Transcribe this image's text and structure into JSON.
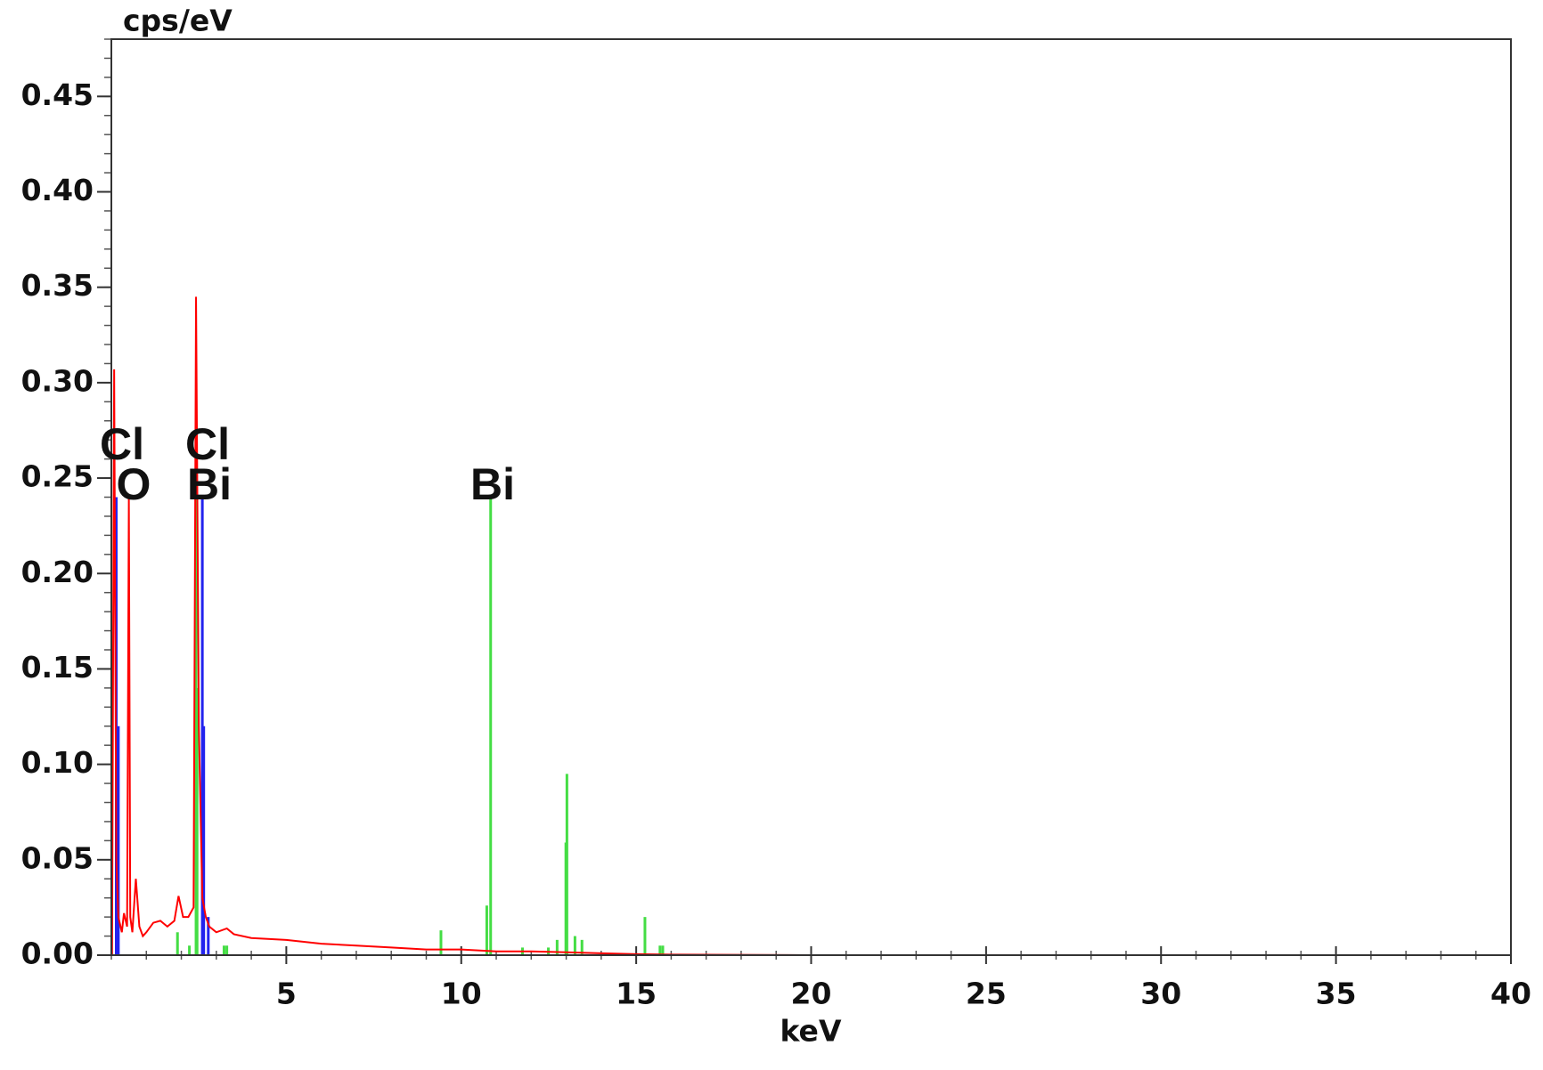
{
  "chart_data": {
    "type": "line",
    "ylabel": "cps/eV",
    "xlabel": "keV",
    "xlim": [
      0,
      40
    ],
    "xticks": [
      5,
      10,
      15,
      20,
      25,
      30,
      35,
      40
    ],
    "ylim": [
      0,
      0.48
    ],
    "yticks": [
      {
        "value": 0,
        "label": "0.00"
      },
      {
        "value": 0.05,
        "label": "0.05"
      },
      {
        "value": 0.1,
        "label": "0.10"
      },
      {
        "value": 0.15,
        "label": "0.15"
      },
      {
        "value": 0.2,
        "label": "0.20"
      },
      {
        "value": 0.25,
        "label": "0.25"
      },
      {
        "value": 0.3,
        "label": "0.30"
      },
      {
        "value": 0.35,
        "label": "0.35"
      },
      {
        "value": 0.4,
        "label": "0.40"
      },
      {
        "value": 0.45,
        "label": "0.45"
      }
    ],
    "series": [
      {
        "color": "#ff0000",
        "style": "line",
        "x": [
          0.02,
          0.08,
          0.14,
          0.2,
          0.3,
          0.36,
          0.45,
          0.5,
          0.54,
          0.6,
          0.7,
          0.8,
          0.9,
          1.0,
          1.2,
          1.4,
          1.6,
          1.8,
          1.92,
          2.05,
          2.2,
          2.35,
          2.42,
          2.5,
          2.6,
          2.7,
          2.8,
          3.0,
          3.3,
          3.5,
          4,
          5,
          6,
          7,
          8,
          9,
          10,
          11,
          12,
          13,
          14,
          15,
          16,
          20,
          40
        ],
        "values": [
          0.0,
          0.307,
          0.05,
          0.02,
          0.012,
          0.022,
          0.015,
          0.24,
          0.02,
          0.012,
          0.04,
          0.015,
          0.01,
          0.012,
          0.017,
          0.018,
          0.015,
          0.018,
          0.031,
          0.02,
          0.02,
          0.025,
          0.345,
          0.12,
          0.03,
          0.02,
          0.015,
          0.012,
          0.014,
          0.011,
          0.009,
          0.008,
          0.006,
          0.005,
          0.004,
          0.003,
          0.003,
          0.002,
          0.002,
          0.0015,
          0.001,
          0.0005,
          0.0003,
          0.0,
          0.0
        ]
      },
      {
        "color": "#44dd44",
        "style": "stem",
        "x": [
          1.89,
          2.23,
          2.42,
          2.45,
          3.22,
          3.3,
          9.42,
          10.73,
          10.84,
          11.75,
          12.49,
          12.74,
          12.99,
          13.02,
          13.25,
          13.45,
          15.25,
          15.68,
          15.76
        ],
        "values": [
          0.012,
          0.005,
          0.24,
          0.14,
          0.005,
          0.005,
          0.013,
          0.026,
          0.24,
          0.004,
          0.004,
          0.008,
          0.059,
          0.095,
          0.01,
          0.008,
          0.02,
          0.005,
          0.005
        ]
      },
      {
        "color": "#2222ee",
        "style": "stem",
        "x": [
          0.14,
          0.2,
          2.6,
          2.64,
          2.77
        ],
        "values": [
          0.24,
          0.12,
          0.24,
          0.12,
          0.02
        ]
      }
    ],
    "annotations": [
      "Cl",
      "O",
      "Cl",
      "Bi",
      "Bi"
    ]
  }
}
